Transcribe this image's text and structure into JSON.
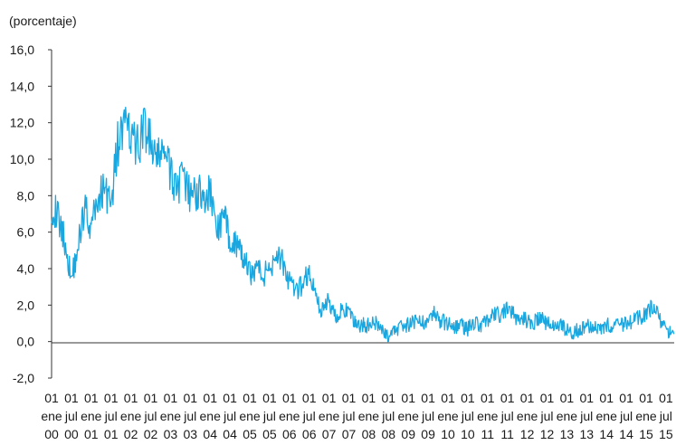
{
  "chart_data": {
    "type": "line",
    "ylabel": "(porcentaje)",
    "ylim": [
      -2.0,
      16.0
    ],
    "yticks": [
      "16,0",
      "14,0",
      "12,0",
      "10,0",
      "8,0",
      "6,0",
      "4,0",
      "2,0",
      "0,0",
      "-2,0"
    ],
    "ytick_values": [
      16,
      14,
      12,
      10,
      8,
      6,
      4,
      2,
      0,
      -2
    ],
    "xtick_labels": [
      [
        "01",
        "ene",
        "00"
      ],
      [
        "01",
        "jul",
        "00"
      ],
      [
        "01",
        "ene",
        "01"
      ],
      [
        "01",
        "jul",
        "01"
      ],
      [
        "01",
        "ene",
        "02"
      ],
      [
        "01",
        "jul",
        "02"
      ],
      [
        "01",
        "ene",
        "03"
      ],
      [
        "01",
        "jul",
        "03"
      ],
      [
        "01",
        "ene",
        "04"
      ],
      [
        "01",
        "jul",
        "04"
      ],
      [
        "01",
        "ene",
        "05"
      ],
      [
        "01",
        "jul",
        "05"
      ],
      [
        "01",
        "ene",
        "06"
      ],
      [
        "01",
        "jul",
        "06"
      ],
      [
        "01",
        "ene",
        "07"
      ],
      [
        "01",
        "jul",
        "07"
      ],
      [
        "01",
        "ene",
        "08"
      ],
      [
        "01",
        "jul",
        "08"
      ],
      [
        "01",
        "ene",
        "09"
      ],
      [
        "01",
        "jul",
        "09"
      ],
      [
        "01",
        "ene",
        "10"
      ],
      [
        "01",
        "jul",
        "10"
      ],
      [
        "01",
        "ene",
        "11"
      ],
      [
        "01",
        "jul",
        "11"
      ],
      [
        "01",
        "ene",
        "12"
      ],
      [
        "01",
        "jul",
        "12"
      ],
      [
        "01",
        "ene",
        "13"
      ],
      [
        "01",
        "jul",
        "13"
      ],
      [
        "01",
        "ene",
        "14"
      ],
      [
        "01",
        "jul",
        "14"
      ],
      [
        "01",
        "ene",
        "15"
      ],
      [
        "01",
        "jul",
        "15"
      ]
    ],
    "grid": false,
    "line_color": "#1aa7e0",
    "series": [
      {
        "x": [
          "2000-01",
          "2000-03",
          "2000-05",
          "2000-07",
          "2000-09",
          "2000-11",
          "2001-01",
          "2001-03",
          "2001-05",
          "2001-07",
          "2001-09",
          "2001-11",
          "2002-01",
          "2002-03",
          "2002-05",
          "2002-07",
          "2002-09",
          "2002-11",
          "2003-01",
          "2003-03",
          "2003-05",
          "2003-07",
          "2003-09",
          "2003-11",
          "2004-01",
          "2004-03",
          "2004-05",
          "2004-07",
          "2004-09",
          "2004-11",
          "2005-01",
          "2005-03",
          "2005-05",
          "2005-07",
          "2005-09",
          "2005-11",
          "2006-01",
          "2006-03",
          "2006-05",
          "2006-07",
          "2006-09",
          "2006-11",
          "2007-01",
          "2007-03",
          "2007-05",
          "2007-07",
          "2007-09",
          "2007-11",
          "2008-01",
          "2008-03",
          "2008-05",
          "2008-07",
          "2008-09",
          "2008-11",
          "2009-01",
          "2009-03",
          "2009-05",
          "2009-07",
          "2009-09",
          "2009-11",
          "2010-01",
          "2010-03",
          "2010-05",
          "2010-07",
          "2010-09",
          "2010-11",
          "2011-01",
          "2011-03",
          "2011-05",
          "2011-07",
          "2011-09",
          "2011-11",
          "2012-01",
          "2012-03",
          "2012-05",
          "2012-07",
          "2012-09",
          "2012-11",
          "2013-01",
          "2013-03",
          "2013-05",
          "2013-07",
          "2013-09",
          "2013-11",
          "2014-01",
          "2014-03",
          "2014-05",
          "2014-07",
          "2014-09",
          "2014-11",
          "2015-01",
          "2015-03",
          "2015-05",
          "2015-07",
          "2015-09",
          "2015-11"
        ],
        "values": [
          7.5,
          6.8,
          5.5,
          3.5,
          5.2,
          7.5,
          6.2,
          7.8,
          8.5,
          7.5,
          10.8,
          11.8,
          11.2,
          10.6,
          11.9,
          10.8,
          9.8,
          10.9,
          9.0,
          8.6,
          8.8,
          7.9,
          8.3,
          7.9,
          8.2,
          6.1,
          6.8,
          5.8,
          5.2,
          4.6,
          3.7,
          4.1,
          3.6,
          4.0,
          4.9,
          4.3,
          3.2,
          2.6,
          3.2,
          3.8,
          2.4,
          1.7,
          2.2,
          1.4,
          1.8,
          1.5,
          1.0,
          0.9,
          0.9,
          1.0,
          0.6,
          0.3,
          0.6,
          0.9,
          0.9,
          1.1,
          1.0,
          1.3,
          1.5,
          1.1,
          1.0,
          0.8,
          0.9,
          0.7,
          1.1,
          0.9,
          1.2,
          1.4,
          1.5,
          1.7,
          1.4,
          1.3,
          1.2,
          1.1,
          1.3,
          1.0,
          0.9,
          1.0,
          0.6,
          0.5,
          0.7,
          0.9,
          0.9,
          0.8,
          0.9,
          0.8,
          0.9,
          1.0,
          1.1,
          1.3,
          1.5,
          1.9,
          1.2,
          0.6,
          0.4,
          0.7
        ]
      }
    ]
  }
}
